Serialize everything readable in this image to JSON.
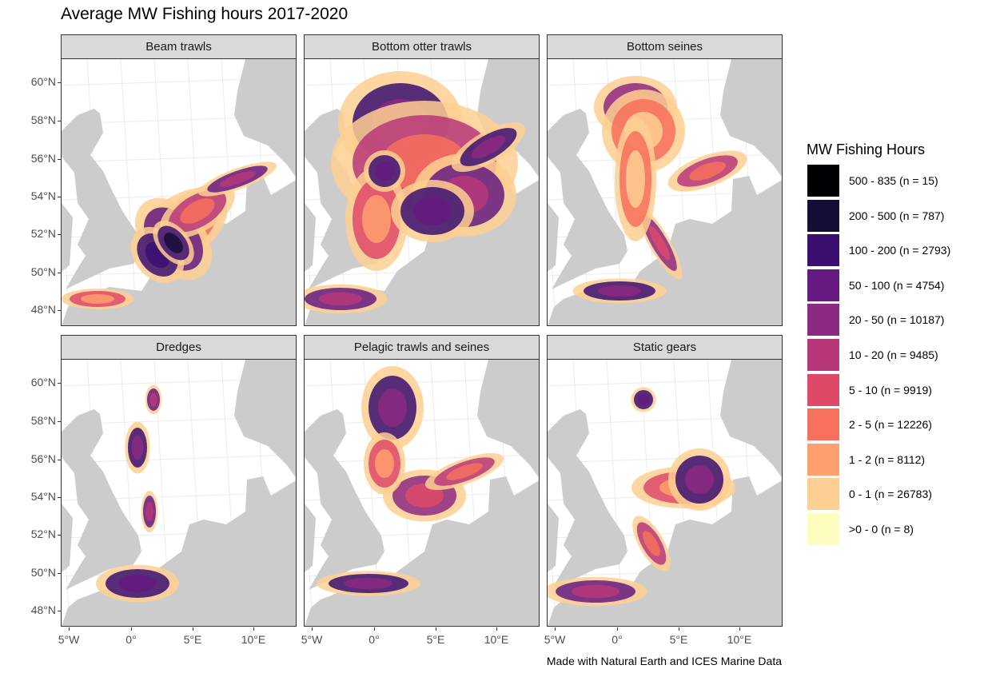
{
  "title": "Average MW Fishing hours 2017-2020",
  "panels": [
    {
      "label": "Beam trawls"
    },
    {
      "label": "Bottom otter trawls"
    },
    {
      "label": "Bottom seines"
    },
    {
      "label": "Dredges"
    },
    {
      "label": "Pelagic trawls and seines"
    },
    {
      "label": "Static gears"
    }
  ],
  "y_ticks": [
    "60°N",
    "58°N",
    "56°N",
    "54°N",
    "52°N",
    "50°N",
    "48°N"
  ],
  "x_ticks": [
    "5°W",
    "0°",
    "5°E",
    "10°E"
  ],
  "legend": {
    "title": "MW Fishing Hours",
    "items": [
      {
        "label": "500 - 835 (n = 15)",
        "color": "#000004"
      },
      {
        "label": "200 - 500 (n = 787)",
        "color": "#140e36"
      },
      {
        "label": "100 - 200 (n = 2793)",
        "color": "#3b0f70"
      },
      {
        "label": "50 - 100 (n = 4754)",
        "color": "#641a80"
      },
      {
        "label": "20 - 50 (n = 10187)",
        "color": "#8c2981"
      },
      {
        "label": "10 - 20 (n = 9485)",
        "color": "#b73779"
      },
      {
        "label": "5 - 10 (n = 9919)",
        "color": "#de4968"
      },
      {
        "label": "2 - 5 (n = 12226)",
        "color": "#f7705c"
      },
      {
        "label": "1 - 2 (n = 8112)",
        "color": "#fe9f6d"
      },
      {
        "label": "0 - 1 (n = 26783)",
        "color": "#fecf92"
      },
      {
        "label": ">0 - 0 (n = 8)",
        "color": "#fcfdbf"
      }
    ]
  },
  "land_color": "#cccccc",
  "caption": "Made with Natural Earth and ICES Marine Data"
}
